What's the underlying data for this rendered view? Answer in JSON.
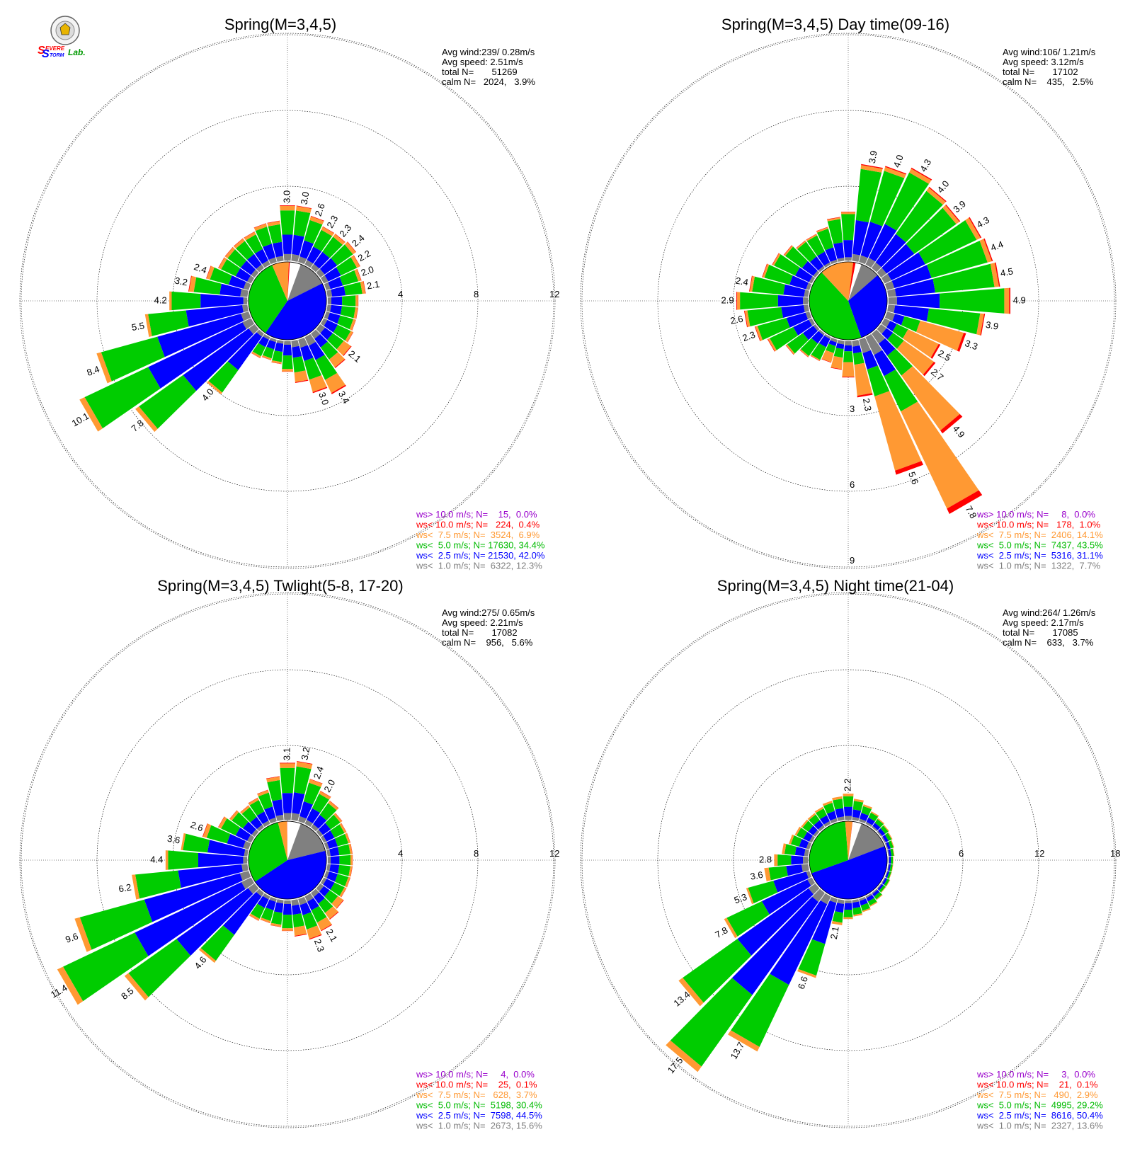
{
  "logo": {
    "text_s1": "S",
    "text_evere": "EVERE",
    "text_s2": "S",
    "text_torm": "TORM",
    "text_lab": "Lab."
  },
  "colors": {
    "gray": "#808080",
    "blue": "#0000ff",
    "green": "#00cc00",
    "orange": "#ff9933",
    "red": "#ff0000",
    "purple": "#9900cc",
    "white": "#ffffff"
  },
  "legend_colors": [
    "#9900cc",
    "#ff0000",
    "#ff9933",
    "#00bb00",
    "#0000ff",
    "#808080"
  ],
  "chart_data": [
    {
      "type": "wind-rose",
      "title": "Spring(M=3,4,5)",
      "stats": [
        "Avg wind:239/ 0.28m/s",
        "Avg speed: 2.51m/s",
        "total N=       51269",
        "calm N=   2024,   3.9%"
      ],
      "rings": [
        4,
        8,
        12
      ],
      "ring_labels": [
        "4",
        "8",
        "12"
      ],
      "ring_label_direction": "east",
      "frequencies": [
        3.0,
        3.0,
        2.6,
        2.3,
        2.3,
        2.4,
        2.2,
        2.0,
        2.1,
        1.7,
        1.7,
        1.7,
        1.8,
        2.1,
        2.3,
        3.4,
        3.0,
        2.3,
        1.7,
        1.3,
        1.2,
        1.3,
        4.0,
        7.8,
        10.1,
        8.4,
        5.5,
        4.2,
        3.2,
        2.4,
        2.0,
        2.0,
        2.0,
        2.0,
        2.2,
        2.2
      ],
      "labels": [
        "3.0",
        "3.0",
        "2.6",
        "2.3",
        "2.3",
        "2.4",
        "2.2",
        "2.0",
        "2.1",
        "",
        "",
        "",
        "",
        "2.1",
        "",
        "3.4",
        "3.0",
        "",
        "",
        "",
        "",
        "",
        "4.0",
        "7.8",
        "10.1",
        "8.4",
        "5.5",
        "4.2",
        "3.2",
        "2.4",
        "",
        "",
        "",
        "",
        "",
        ""
      ],
      "mix": "overall",
      "pie": [
        0.12,
        0.42,
        0.34,
        0.07,
        0.004,
        0.0
      ],
      "legend": [
        "ws> 10.0 m/s; N=    15,  0.0%",
        "ws< 10.0 m/s; N=   224,  0.4%",
        "ws<  7.5 m/s; N=  3524,  6.9%",
        "ws<  5.0 m/s; N= 17630, 34.4%",
        "ws<  2.5 m/s; N= 21530, 42.0%",
        "ws<  1.0 m/s; N=  6322, 12.3%"
      ]
    },
    {
      "type": "wind-rose",
      "title": "Spring(M=3,4,5) Day time(09-16)",
      "stats": [
        "Avg wind:106/ 1.21m/s",
        "Avg speed: 3.12m/s",
        "total N=       17102",
        "calm N=    435,   2.5%"
      ],
      "rings": [
        3,
        6,
        9
      ],
      "ring_labels": [
        "3",
        "6",
        "9"
      ],
      "ring_label_direction": "south",
      "frequencies": [
        2.0,
        3.9,
        4.0,
        4.3,
        4.0,
        3.9,
        4.3,
        4.4,
        4.5,
        4.9,
        3.9,
        3.3,
        2.5,
        2.7,
        4.9,
        7.8,
        5.6,
        2.3,
        1.5,
        1.2,
        1.0,
        1.1,
        1.2,
        1.5,
        2.0,
        2.3,
        2.6,
        2.9,
        2.4,
        2.0,
        1.8,
        1.6,
        1.4,
        1.4,
        1.5,
        1.8
      ],
      "labels": [
        "",
        "3.9",
        "4.0",
        "4.3",
        "4.0",
        "3.9",
        "4.3",
        "4.4",
        "4.5",
        "4.9",
        "3.9",
        "3.3",
        "2.5",
        "2.7",
        "4.9",
        "7.8",
        "5.6",
        "2.3",
        "",
        "",
        "",
        "",
        "",
        "",
        "",
        "2.3",
        "2.6",
        "2.9",
        "2.4",
        "",
        "",
        "",
        "",
        "",
        "",
        ""
      ],
      "mix": "day",
      "pie": [
        0.08,
        0.31,
        0.435,
        0.14,
        0.01,
        0.0
      ],
      "legend": [
        "ws> 10.0 m/s; N=     8,  0.0%",
        "ws< 10.0 m/s; N=   178,  1.0%",
        "ws<  7.5 m/s; N=  2406, 14.1%",
        "ws<  5.0 m/s; N=  7437, 43.5%",
        "ws<  2.5 m/s; N=  5316, 31.1%",
        "ws<  1.0 m/s; N=  1322,  7.7%"
      ]
    },
    {
      "type": "wind-rose",
      "title": "Spring(M=3,4,5) Twlight(5-8, 17-20)",
      "stats": [
        "Avg wind:275/ 0.65m/s",
        "Avg speed: 2.21m/s",
        "total N=       17082",
        "calm N=    956,   5.6%"
      ],
      "rings": [
        4,
        8,
        12
      ],
      "ring_labels": [
        "4",
        "8",
        "12"
      ],
      "ring_label_direction": "east",
      "frequencies": [
        3.1,
        3.2,
        2.4,
        2.0,
        1.8,
        1.5,
        1.4,
        1.4,
        1.4,
        1.4,
        1.4,
        1.4,
        1.4,
        1.6,
        1.8,
        2.1,
        2.3,
        2.0,
        1.7,
        1.5,
        1.4,
        1.5,
        4.6,
        8.5,
        11.4,
        9.6,
        6.2,
        4.4,
        3.6,
        2.6,
        2.0,
        1.7,
        1.5,
        1.6,
        1.8,
        2.4
      ],
      "labels": [
        "3.1",
        "3.2",
        "2.4",
        "2.0",
        "",
        "",
        "",
        "",
        "",
        "",
        "",
        "",
        "",
        "",
        "",
        "2.1",
        "2.3",
        "",
        "",
        "",
        "",
        "",
        "4.6",
        "8.5",
        "11.4",
        "9.6",
        "6.2",
        "4.4",
        "3.6",
        "2.6",
        "",
        "",
        "",
        "",
        "",
        ""
      ],
      "mix": "overall",
      "pie": [
        0.156,
        0.445,
        0.304,
        0.037,
        0.001,
        0.0
      ],
      "legend": [
        "ws> 10.0 m/s; N=     4,  0.0%",
        "ws< 10.0 m/s; N=    25,  0.1%",
        "ws<  7.5 m/s; N=   628,  3.7%",
        "ws<  5.0 m/s; N=  5198, 30.4%",
        "ws<  2.5 m/s; N=  7598, 44.5%",
        "ws<  1.0 m/s; N=  2673, 15.6%"
      ]
    },
    {
      "type": "wind-rose",
      "title": "Spring(M=3,4,5) Night time(21-04)",
      "stats": [
        "Avg wind:264/ 1.26m/s",
        "Avg speed: 2.17m/s",
        "total N=       17085",
        "calm N=    633,   3.7%"
      ],
      "rings": [
        6,
        12,
        18
      ],
      "ring_labels": [
        "6",
        "12",
        "18"
      ],
      "ring_label_direction": "east",
      "frequencies": [
        2.2,
        1.8,
        1.5,
        1.2,
        1.0,
        0.9,
        0.8,
        0.7,
        0.6,
        0.5,
        0.5,
        0.5,
        0.6,
        0.6,
        0.8,
        1.0,
        1.2,
        1.4,
        1.6,
        2.1,
        6.6,
        13.7,
        17.5,
        13.4,
        7.8,
        5.3,
        3.6,
        2.8,
        2.2,
        1.8,
        1.6,
        1.5,
        1.5,
        1.6,
        1.8,
        2.0
      ],
      "labels": [
        "2.2",
        "",
        "",
        "",
        "",
        "",
        "",
        "",
        "",
        "",
        "",
        "",
        "",
        "",
        "",
        "",
        "",
        "",
        "",
        "2.1",
        "6.6",
        "13.7",
        "17.5",
        "13.4",
        "7.8",
        "5.3",
        "3.6",
        "2.8",
        "",
        "",
        "",
        "",
        "",
        "",
        "",
        ""
      ],
      "mix": "night",
      "pie": [
        0.136,
        0.504,
        0.292,
        0.029,
        0.001,
        0.0
      ],
      "legend": [
        "ws> 10.0 m/s; N=     3,  0.0%",
        "ws< 10.0 m/s; N=    21,  0.1%",
        "ws<  7.5 m/s; N=   490,  2.9%",
        "ws<  5.0 m/s; N=  4995, 29.2%",
        "ws<  2.5 m/s; N=  8616, 50.4%",
        "ws<  1.0 m/s; N=  2327, 13.6%"
      ]
    }
  ]
}
